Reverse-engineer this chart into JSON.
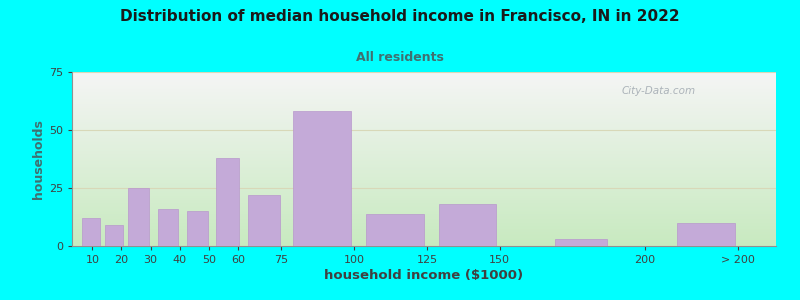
{
  "title": "Distribution of median household income in Francisco, IN in 2022",
  "subtitle": "All residents",
  "xlabel": "household income ($1000)",
  "ylabel": "households",
  "background_outer": "#00FFFF",
  "bar_color": "#C4AAD8",
  "bar_edge_color": "#B898CC",
  "plot_bg_top": "#F5F5F5",
  "plot_bg_bottom": "#C8EAC0",
  "ylabel_color": "#407070",
  "xlabel_color": "#404040",
  "title_color": "#1a1a1a",
  "subtitle_color": "#407070",
  "grid_color": "#D8D8B8",
  "values": [
    12,
    9,
    25,
    16,
    15,
    38,
    22,
    58,
    14,
    18,
    3,
    10
  ],
  "bar_lefts": [
    6,
    14,
    22,
    32,
    42,
    52,
    63,
    78,
    103,
    128,
    168,
    210
  ],
  "bar_widths": [
    7,
    7,
    8,
    8,
    8,
    9,
    12,
    22,
    22,
    22,
    20,
    22
  ],
  "ylim": [
    0,
    75
  ],
  "yticks": [
    0,
    25,
    50,
    75
  ],
  "xtick_labels": [
    "10",
    "20",
    "30",
    "40",
    "50",
    "60",
    "75",
    "100",
    "125",
    "150",
    "200",
    "> 200"
  ],
  "xtick_positions": [
    10,
    20,
    30,
    40,
    50,
    60,
    75,
    100,
    125,
    150,
    200,
    232
  ],
  "xlim": [
    3,
    245
  ],
  "watermark": "City-Data.com"
}
